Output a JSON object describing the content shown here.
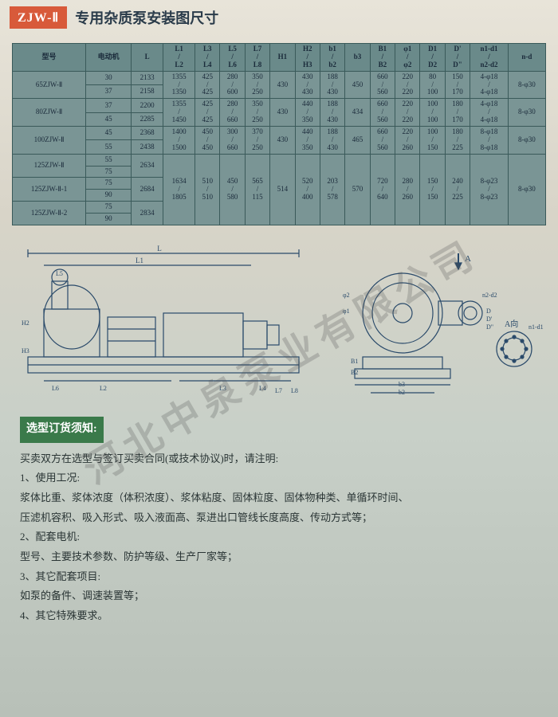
{
  "header": {
    "badge": "ZJW-Ⅱ",
    "title": "专用杂质泵安装图尺寸"
  },
  "table": {
    "headers": [
      "型号",
      "电动机",
      "L",
      "L1/L2",
      "L3/L4",
      "L5/L6",
      "L7/L8",
      "H1",
      "H2/H3",
      "b1/b2",
      "b3",
      "B1/B2",
      "φ1/φ2",
      "D1/D2",
      "D'/D\"",
      "n1-d1/n2-d2",
      "n-d"
    ],
    "rows": [
      [
        "65ZJW-Ⅱ",
        "30",
        "2133",
        "1355/1350",
        "425/425",
        "280/600",
        "350/250",
        "430",
        "430/430",
        "188/430",
        "450",
        "660/560",
        "220/220",
        "80/100",
        "150/170",
        "4-φ18/4-φ18",
        "8-φ30"
      ],
      [
        "",
        "37",
        "2158",
        "",
        "",
        "",
        "",
        "",
        "",
        "",
        "",
        "",
        "",
        "",
        "",
        "",
        ""
      ],
      [
        "80ZJW-Ⅱ",
        "37",
        "2200",
        "1355/1450",
        "425/425",
        "280/660",
        "350/250",
        "430",
        "440/350",
        "188/430",
        "434",
        "660/560",
        "220/220",
        "100/100",
        "180/170",
        "4-φ18/4-φ18",
        "8-φ30"
      ],
      [
        "",
        "45",
        "2285",
        "",
        "",
        "",
        "",
        "",
        "",
        "",
        "",
        "",
        "",
        "",
        "",
        "",
        ""
      ],
      [
        "100ZJW-Ⅱ",
        "45",
        "2368",
        "1400/1500",
        "450/450",
        "300/660",
        "370/250",
        "430",
        "440/350",
        "188/430",
        "465",
        "660/560",
        "220/260",
        "100/150",
        "180/225",
        "8-φ18/8-φ18",
        "8-φ30"
      ],
      [
        "",
        "55",
        "2438",
        "",
        "",
        "",
        "",
        "",
        "",
        "",
        "",
        "",
        "",
        "",
        "",
        "",
        ""
      ],
      [
        "125ZJW-Ⅱ",
        "55",
        "2634",
        "1634/1805",
        "510/510",
        "450/580",
        "565/115",
        "514",
        "520/400",
        "203/578",
        "570",
        "720/640",
        "280/260",
        "150/150",
        "240/225",
        "8-φ23/8-φ23",
        "8-φ30"
      ],
      [
        "",
        "75",
        "",
        "",
        "",
        "",
        "",
        "",
        "",
        "",
        "",
        "",
        "",
        "",
        "",
        "",
        ""
      ],
      [
        "125ZJW-Ⅱ-1",
        "75",
        "2684",
        "",
        "",
        "",
        "",
        "",
        "",
        "",
        "",
        "",
        "",
        "",
        "",
        "",
        ""
      ],
      [
        "",
        "90",
        "",
        "",
        "",
        "",
        "",
        "",
        "",
        "",
        "",
        "",
        "",
        "",
        "",
        "",
        ""
      ],
      [
        "125ZJW-Ⅱ-2",
        "75",
        "2834",
        "",
        "",
        "",
        "",
        "",
        "",
        "",
        "",
        "",
        "",
        "",
        "",
        "",
        ""
      ],
      [
        "",
        "90",
        "",
        "",
        "",
        "",
        "",
        "",
        "",
        "",
        "",
        "",
        "",
        "",
        "",
        "",
        ""
      ]
    ]
  },
  "diagram": {
    "labels_side": [
      "L",
      "L1",
      "L5",
      "L2",
      "L6",
      "H2",
      "H3",
      "B2",
      "B1",
      "D",
      "D'",
      "D\"",
      "L3",
      "L4",
      "↓A",
      "A向",
      "b2",
      "b3",
      "n2-d2",
      "n1-d1",
      "φ1",
      "φ2",
      "L7",
      "L8"
    ],
    "stroke": "#2a4a6a"
  },
  "notes": {
    "title": "选型订货须知:",
    "intro": "买卖双方在选型与签订买卖合同(或技术协议)时，请注明:",
    "items": [
      "1、使用工况:",
      "浆体比重、浆体浓度（体积浓度）、浆体粘度、固体粒度、固体物种类、单循环时间、",
      "压滤机容积、吸入形式、吸入液面高、泵进出口管线长度高度、传动方式等；",
      "2、配套电机:",
      "型号、主要技术参数、防护等级、生产厂家等；",
      "3、其它配套项目:",
      "如泵的备件、调速装置等；",
      "4、其它特殊要求。"
    ]
  },
  "watermark": "河北中泉泵业有限公司"
}
